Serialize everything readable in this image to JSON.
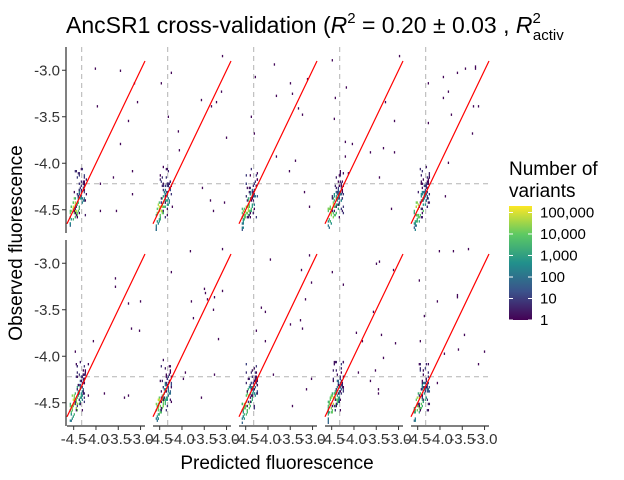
{
  "chart_data": {
    "type": "heatmap",
    "title": {
      "prefix": "AncSR1 cross-validation (",
      "r2_symbol": "R",
      "r2_exponent": "2",
      "r2_value": " = 0.20 ± 0.03 , ",
      "r2_active_symbol": "R",
      "r2_active_exponent": "2",
      "r2_active_subscript": "activ"
    },
    "xlabel": "Predicted fluorescence",
    "ylabel": "Observed fluorescence",
    "xlim": [
      -4.65,
      -2.9
    ],
    "ylim": [
      -4.75,
      -2.75
    ],
    "x_ticks": [
      -4.5,
      -4.0,
      -3.5,
      -3.0
    ],
    "x_tick_labels": [
      "-4.5",
      "-4.0",
      "-3.5",
      "-3.0"
    ],
    "y_ticks": [
      -3.0,
      -3.5,
      -4.0,
      -4.5
    ],
    "y_tick_labels": [
      "-3.0",
      "-3.5",
      "-4.0",
      "-4.5"
    ],
    "grid": false,
    "facets": {
      "rows": 2,
      "cols": 5
    },
    "reference_lines": {
      "dashed_horizontal_y": -4.22,
      "dashed_vertical_x": -4.32,
      "fit_line": {
        "slope": 1.0,
        "intercept": 0.0,
        "color": "#ff0000"
      },
      "dashed_color": "#b3b3b3"
    },
    "legend": {
      "title_line1": "Number of",
      "title_line2": "variants",
      "placement": "right",
      "scale": "log10",
      "breaks": [
        100000,
        10000,
        1000,
        100,
        10,
        1
      ],
      "labels": [
        "100,000",
        "10,000",
        "1,000",
        "100",
        "10",
        "1"
      ],
      "range": [
        1,
        200000
      ],
      "colormap": [
        "#440154",
        "#3b528b",
        "#21908c",
        "#5dc963",
        "#fde725"
      ]
    },
    "colors": {
      "fit_line": "#ff0000",
      "dashed": "#b3b3b3",
      "axis": "#000000"
    }
  }
}
